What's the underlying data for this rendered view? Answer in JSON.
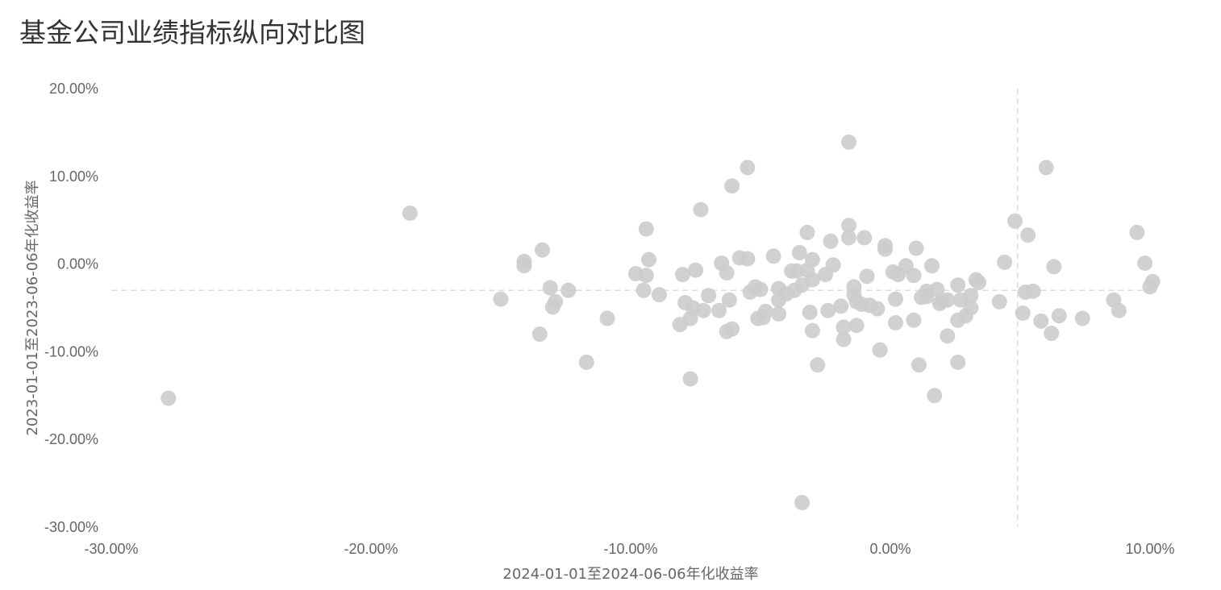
{
  "page": {
    "title": "基金公司业绩指标纵向对比图"
  },
  "chart_data": {
    "type": "scatter",
    "title": "基金公司业绩指标纵向对比图",
    "xlabel": "2024-01-01至2024-06-06年化收益率",
    "ylabel": "2023-01-01至2023-06-06年化收益率",
    "x_ticks": [
      "-30.00%",
      "-20.00%",
      "-10.00%",
      "0.00%",
      "10.00%"
    ],
    "y_ticks": [
      "20.00%",
      "10.00%",
      "0.00%",
      "-10.00%",
      "-20.00%",
      "-30.00%"
    ],
    "xlim": [
      -30,
      10
    ],
    "ylim": [
      -30,
      20
    ],
    "grid": false,
    "reference_lines": {
      "x": 4.9,
      "y": -3
    },
    "marker_color": "#cccccc",
    "line_color": "#dddddd",
    "points": [
      {
        "x": -27.8,
        "y": -15.3
      },
      {
        "x": -18.5,
        "y": 5.8
      },
      {
        "x": -15.0,
        "y": -4.0
      },
      {
        "x": -14.1,
        "y": 0.3
      },
      {
        "x": -14.1,
        "y": -0.2
      },
      {
        "x": -13.4,
        "y": 1.6
      },
      {
        "x": -13.5,
        "y": -8.0
      },
      {
        "x": -13.1,
        "y": -2.7
      },
      {
        "x": -12.9,
        "y": -4.3
      },
      {
        "x": -13.0,
        "y": -4.9
      },
      {
        "x": -12.4,
        "y": -3.0
      },
      {
        "x": -11.7,
        "y": -11.2
      },
      {
        "x": -10.9,
        "y": -6.2
      },
      {
        "x": -9.8,
        "y": -1.1
      },
      {
        "x": -9.4,
        "y": 4.0
      },
      {
        "x": -9.3,
        "y": 0.5
      },
      {
        "x": -9.4,
        "y": -1.3
      },
      {
        "x": -9.5,
        "y": -3.0
      },
      {
        "x": -8.9,
        "y": -3.5
      },
      {
        "x": -8.1,
        "y": -6.9
      },
      {
        "x": -8.0,
        "y": -1.2
      },
      {
        "x": -7.9,
        "y": -4.4
      },
      {
        "x": -7.7,
        "y": -6.2
      },
      {
        "x": -7.7,
        "y": -13.1
      },
      {
        "x": -7.6,
        "y": -5.0
      },
      {
        "x": -7.5,
        "y": -0.7
      },
      {
        "x": -7.3,
        "y": 6.2
      },
      {
        "x": -7.2,
        "y": -5.3
      },
      {
        "x": -7.0,
        "y": -3.6
      },
      {
        "x": -6.6,
        "y": -5.3
      },
      {
        "x": -6.5,
        "y": 0.1
      },
      {
        "x": -6.3,
        "y": -1.0
      },
      {
        "x": -6.2,
        "y": -4.1
      },
      {
        "x": -6.3,
        "y": -7.7
      },
      {
        "x": -6.1,
        "y": -7.4
      },
      {
        "x": -6.1,
        "y": 8.9
      },
      {
        "x": -5.8,
        "y": 0.7
      },
      {
        "x": -5.5,
        "y": 11.0
      },
      {
        "x": -5.5,
        "y": 0.6
      },
      {
        "x": -5.4,
        "y": -3.2
      },
      {
        "x": -5.2,
        "y": -2.6
      },
      {
        "x": -5.0,
        "y": -2.9
      },
      {
        "x": -5.1,
        "y": -6.2
      },
      {
        "x": -4.9,
        "y": -6.1
      },
      {
        "x": -4.8,
        "y": -5.4
      },
      {
        "x": -4.5,
        "y": 0.9
      },
      {
        "x": -4.3,
        "y": -2.8
      },
      {
        "x": -4.3,
        "y": -4.1
      },
      {
        "x": -4.3,
        "y": -5.7
      },
      {
        "x": -4.0,
        "y": -3.4
      },
      {
        "x": -3.8,
        "y": -0.8
      },
      {
        "x": -3.7,
        "y": -3.0
      },
      {
        "x": -3.6,
        "y": -0.8
      },
      {
        "x": -3.5,
        "y": 1.3
      },
      {
        "x": -3.4,
        "y": -2.4
      },
      {
        "x": -3.2,
        "y": 3.6
      },
      {
        "x": -3.2,
        "y": -0.7
      },
      {
        "x": -3.1,
        "y": -5.5
      },
      {
        "x": -3.0,
        "y": -1.8
      },
      {
        "x": -3.0,
        "y": 0.5
      },
      {
        "x": -3.0,
        "y": -7.6
      },
      {
        "x": -2.8,
        "y": -11.5
      },
      {
        "x": -2.5,
        "y": -1.2
      },
      {
        "x": -2.4,
        "y": -5.3
      },
      {
        "x": -2.3,
        "y": 2.6
      },
      {
        "x": -2.2,
        "y": -0.1
      },
      {
        "x": -1.9,
        "y": -4.8
      },
      {
        "x": -1.8,
        "y": -8.6
      },
      {
        "x": -1.8,
        "y": -7.2
      },
      {
        "x": -1.6,
        "y": 13.9
      },
      {
        "x": -1.6,
        "y": 4.4
      },
      {
        "x": -1.6,
        "y": 3.0
      },
      {
        "x": -1.4,
        "y": -3.5
      },
      {
        "x": -1.4,
        "y": -2.6
      },
      {
        "x": -1.3,
        "y": -7.0
      },
      {
        "x": -1.3,
        "y": -4.3
      },
      {
        "x": -1.1,
        "y": -4.6
      },
      {
        "x": -1.0,
        "y": 3.0
      },
      {
        "x": -0.9,
        "y": -1.4
      },
      {
        "x": -0.8,
        "y": -4.7
      },
      {
        "x": -0.5,
        "y": -5.1
      },
      {
        "x": -0.4,
        "y": -9.8
      },
      {
        "x": -0.2,
        "y": 2.1
      },
      {
        "x": -0.2,
        "y": 1.7
      },
      {
        "x": 0.1,
        "y": -0.9
      },
      {
        "x": 0.2,
        "y": -4.0
      },
      {
        "x": 0.2,
        "y": -6.7
      },
      {
        "x": 0.3,
        "y": -1.2
      },
      {
        "x": 0.6,
        "y": -0.2
      },
      {
        "x": 0.9,
        "y": -1.3
      },
      {
        "x": 0.9,
        "y": -6.4
      },
      {
        "x": 1.0,
        "y": 1.8
      },
      {
        "x": 1.1,
        "y": -11.5
      },
      {
        "x": 1.2,
        "y": -3.8
      },
      {
        "x": 1.4,
        "y": -3.1
      },
      {
        "x": 1.4,
        "y": -3.7
      },
      {
        "x": 1.6,
        "y": -0.2
      },
      {
        "x": 1.7,
        "y": -15.0
      },
      {
        "x": 1.8,
        "y": -2.9
      },
      {
        "x": 1.9,
        "y": -4.5
      },
      {
        "x": 2.0,
        "y": -4.2
      },
      {
        "x": 2.2,
        "y": -8.2
      },
      {
        "x": 2.2,
        "y": -4.1
      },
      {
        "x": 2.6,
        "y": -11.2
      },
      {
        "x": 2.6,
        "y": -6.4
      },
      {
        "x": 2.6,
        "y": -2.4
      },
      {
        "x": 2.7,
        "y": -4.1
      },
      {
        "x": 2.9,
        "y": -5.9
      },
      {
        "x": 3.1,
        "y": -5.0
      },
      {
        "x": 3.1,
        "y": -3.6
      },
      {
        "x": 3.3,
        "y": -1.8
      },
      {
        "x": 3.4,
        "y": -2.1
      },
      {
        "x": 4.2,
        "y": -4.3
      },
      {
        "x": 4.4,
        "y": 0.2
      },
      {
        "x": 4.8,
        "y": 4.9
      },
      {
        "x": 5.1,
        "y": -5.6
      },
      {
        "x": 5.2,
        "y": -3.2
      },
      {
        "x": 5.3,
        "y": 3.3
      },
      {
        "x": 5.5,
        "y": -3.1
      },
      {
        "x": 5.8,
        "y": -6.5
      },
      {
        "x": 6.0,
        "y": 11.0
      },
      {
        "x": 6.2,
        "y": -7.9
      },
      {
        "x": 6.3,
        "y": -0.3
      },
      {
        "x": 6.5,
        "y": -5.9
      },
      {
        "x": 7.4,
        "y": -6.2
      },
      {
        "x": 8.6,
        "y": -4.1
      },
      {
        "x": 8.8,
        "y": -5.3
      },
      {
        "x": 9.5,
        "y": 3.6
      },
      {
        "x": 9.8,
        "y": 0.1
      },
      {
        "x": 10.0,
        "y": -2.6
      },
      {
        "x": 10.1,
        "y": -2.0
      },
      {
        "x": -3.4,
        "y": -27.2
      }
    ]
  }
}
